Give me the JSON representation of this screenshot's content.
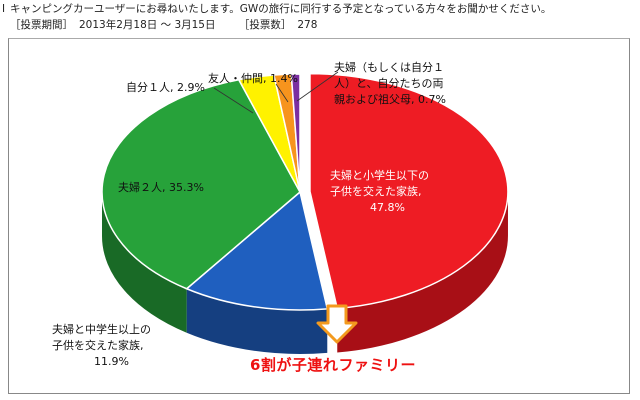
{
  "header": {
    "marker": "I",
    "question": "キャンピングカーユーザーにお尋ねいたします。GWの旅行に同行する予定となっている方々をお聞かせください。",
    "period_label": "［投票期間］",
    "period_value": "2013年2月18日 〜 3月15日",
    "count_label": "［投票数］",
    "count_value": "278"
  },
  "chart_data": {
    "type": "pie",
    "title": "",
    "slices": [
      {
        "label": "夫婦と小学生以下の子供を交えた家族",
        "value": 47.8,
        "color": "#ee1c24",
        "dark": "#a80f16"
      },
      {
        "label": "夫婦と中学生以上の子供を交えた家族",
        "value": 11.9,
        "color": "#1f5fbf",
        "dark": "#153f80"
      },
      {
        "label": "夫婦２人",
        "value": 35.3,
        "color": "#27a23a",
        "dark": "#196a26"
      },
      {
        "label": "自分１人",
        "value": 2.9,
        "color": "#fff200",
        "dark": "#b3a800"
      },
      {
        "label": "友人・仲間",
        "value": 1.4,
        "color": "#f7941d",
        "dark": "#b06612"
      },
      {
        "label": "夫婦（もしくは自分１人）と、自分たちの両親および祖父母",
        "value": 0.7,
        "color": "#7b2fa1",
        "dark": "#521d6c"
      }
    ]
  },
  "labels": {
    "kids_small_l1": "夫婦と小学生以下の",
    "kids_small_l2": "子供を交えた家族,",
    "kids_small_l3": "47.8%",
    "kids_big_l1": "夫婦と中学生以上の",
    "kids_big_l2": "子供を交えた家族,",
    "kids_big_l3": "11.9%",
    "couple": "夫婦２人, 35.3%",
    "alone": "自分１人, 2.9%",
    "friends": "友人・仲間, 1.4%",
    "parents_l1": "夫婦（もしくは自分１",
    "parents_l2": "人）と、自分たちの両",
    "parents_l3": "親および祖父母, 0.7%"
  },
  "annotation": {
    "text": "6割が子連れファミリー",
    "color": "#ee1111"
  }
}
